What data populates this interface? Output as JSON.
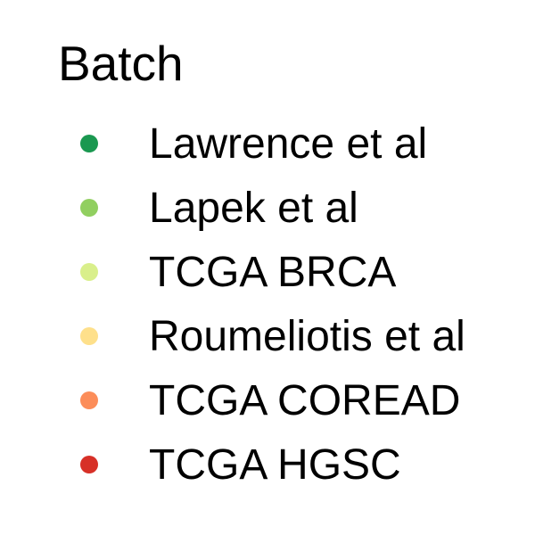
{
  "chart_data": {
    "type": "legend",
    "title": "Batch",
    "entries": [
      {
        "label": "Lawrence et al",
        "color": "#1a9850"
      },
      {
        "label": "Lapek et al",
        "color": "#91cf60"
      },
      {
        "label": "TCGA BRCA",
        "color": "#d9ef8b"
      },
      {
        "label": "Roumeliotis et al",
        "color": "#fee08b"
      },
      {
        "label": "TCGA COREAD",
        "color": "#fc8d59"
      },
      {
        "label": "TCGA HGSC",
        "color": "#d73027"
      }
    ]
  }
}
